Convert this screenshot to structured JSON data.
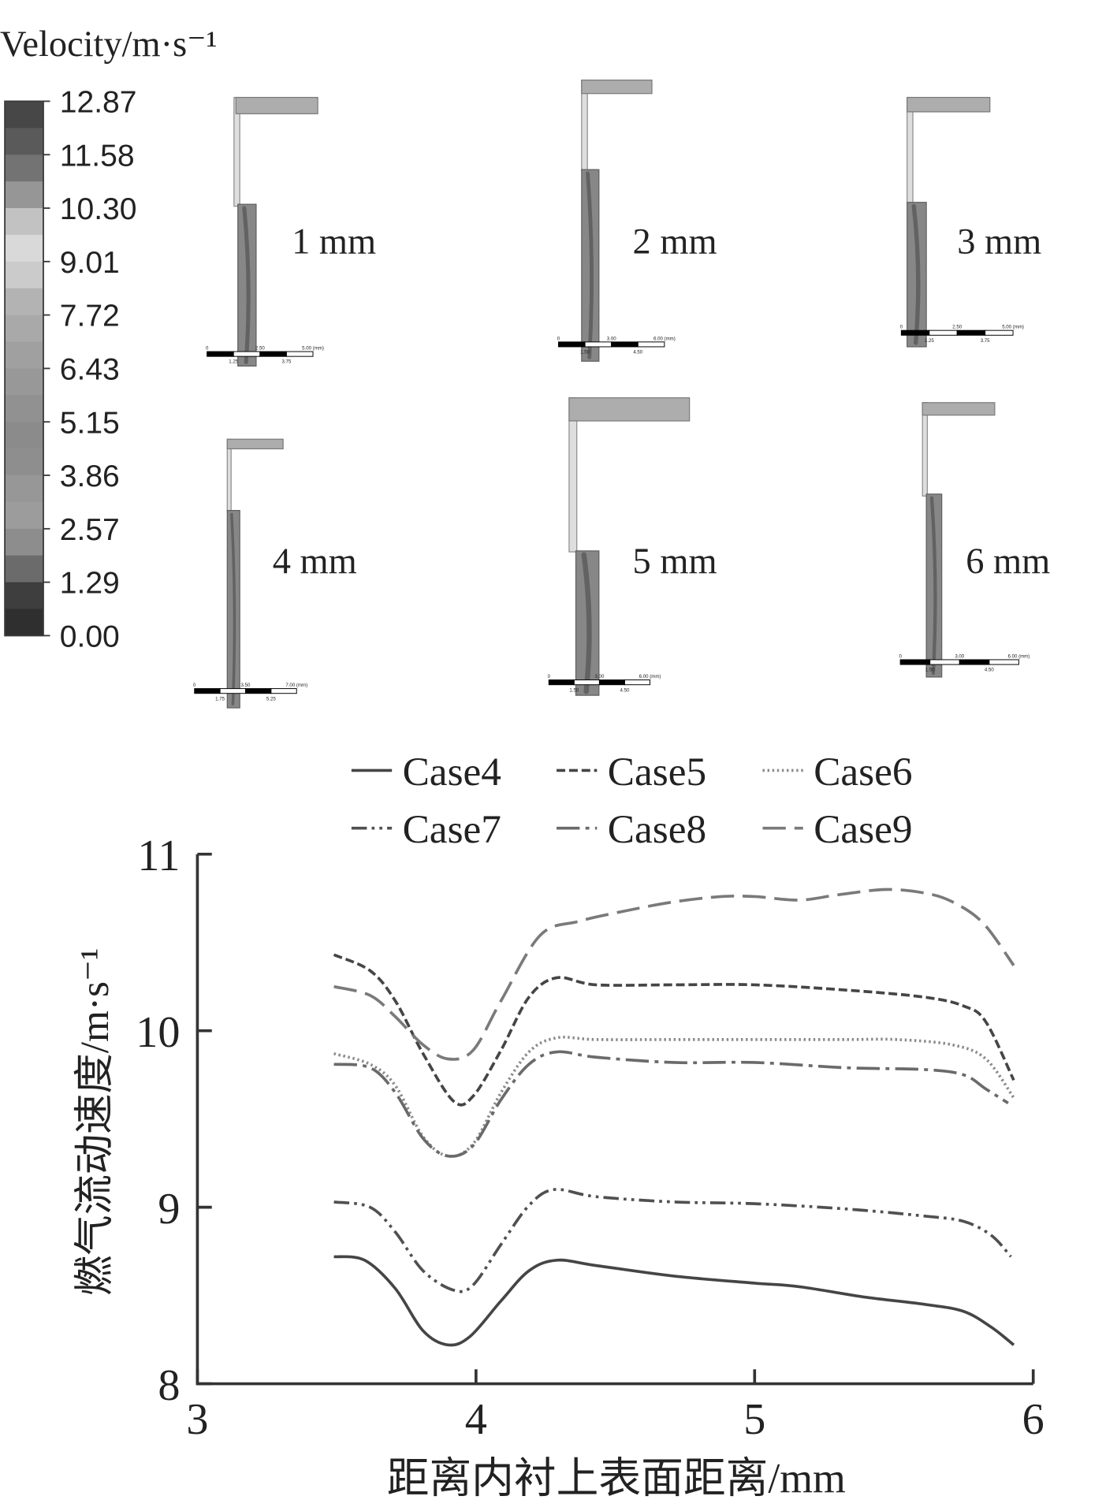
{
  "colorbar": {
    "title": "Velocity/m·s⁻¹",
    "labels": [
      "12.87",
      "11.58",
      "10.30",
      "9.01",
      "7.72",
      "6.43",
      "5.15",
      "3.86",
      "2.57",
      "1.29",
      "0.00"
    ],
    "bands": [
      "#474747",
      "#5a5a5a",
      "#737373",
      "#969696",
      "#c2c2c2",
      "#d9d9d9",
      "#cbcbcb",
      "#b3b3b3",
      "#a9a9a9",
      "#a0a0a0",
      "#989898",
      "#919191",
      "#8b8b8b",
      "#8e8e8e",
      "#979797",
      "#9c9c9c",
      "#8d8d8d",
      "#6b6b6b",
      "#3e3e3e",
      "#2f2f2f"
    ]
  },
  "panels": [
    {
      "label": "1 mm",
      "scale_labels": [
        "0",
        "2.50",
        "5.00 (mm)",
        "1.25",
        "3.75"
      ]
    },
    {
      "label": "2 mm",
      "scale_labels": [
        "0",
        "3.00",
        "6.00 (mm)",
        "1.50",
        "4.50"
      ]
    },
    {
      "label": "3 mm",
      "scale_labels": [
        "0",
        "2.50",
        "5.00 (mm)",
        "1.25",
        "3.75"
      ]
    },
    {
      "label": "4 mm",
      "scale_labels": [
        "0",
        "3.50",
        "7.00 (mm)",
        "1.75",
        "5.25"
      ]
    },
    {
      "label": "5 mm",
      "scale_labels": [
        "0",
        "3.00",
        "6.00 (mm)",
        "1.50",
        "4.50"
      ]
    },
    {
      "label": "6 mm",
      "scale_labels": [
        "0",
        "3.00",
        "6.00 (mm)",
        "1.50",
        "4.50"
      ]
    }
  ],
  "chart_data": {
    "type": "line",
    "xlabel": "距离内衬上表面距离/mm",
    "ylabel": "燃气流动速度/m·s⁻¹",
    "xlim": [
      3,
      6
    ],
    "ylim": [
      8,
      11
    ],
    "x_ticks": [
      "3",
      "4",
      "5",
      "6"
    ],
    "y_ticks": [
      "8",
      "9",
      "10",
      "11"
    ],
    "grid": false,
    "legend_position": "top",
    "axis_color": "#333333",
    "series": [
      {
        "name": "Case4",
        "style": "solid",
        "color": "#454545",
        "x": [
          3.49,
          3.6,
          3.71,
          3.81,
          3.9,
          3.98,
          4.09,
          4.19,
          4.29,
          4.43,
          4.71,
          5.0,
          5.16,
          5.4,
          5.61,
          5.75,
          5.85,
          5.93
        ],
        "y": [
          8.72,
          8.7,
          8.54,
          8.3,
          8.22,
          8.27,
          8.47,
          8.64,
          8.7,
          8.67,
          8.61,
          8.57,
          8.55,
          8.49,
          8.45,
          8.41,
          8.32,
          8.22
        ]
      },
      {
        "name": "Case5",
        "style": "dashed",
        "color": "#454545",
        "x": [
          3.49,
          3.62,
          3.71,
          3.81,
          3.92,
          3.99,
          4.09,
          4.19,
          4.29,
          4.43,
          4.71,
          5.0,
          5.33,
          5.61,
          5.75,
          5.83,
          5.93
        ],
        "y": [
          10.43,
          10.34,
          10.17,
          9.87,
          9.6,
          9.63,
          9.89,
          10.19,
          10.3,
          10.26,
          10.26,
          10.26,
          10.23,
          10.19,
          10.14,
          10.05,
          9.72
        ]
      },
      {
        "name": "Case6",
        "style": "dotted",
        "color": "#8a8a8a",
        "x": [
          3.49,
          3.62,
          3.71,
          3.81,
          3.9,
          3.99,
          4.09,
          4.19,
          4.29,
          4.43,
          4.71,
          5.0,
          5.33,
          5.51,
          5.71,
          5.83,
          5.93
        ],
        "y": [
          9.87,
          9.81,
          9.69,
          9.4,
          9.29,
          9.36,
          9.65,
          9.88,
          9.96,
          9.95,
          9.95,
          9.95,
          9.95,
          9.95,
          9.92,
          9.84,
          9.62
        ]
      },
      {
        "name": "Case7",
        "style": "dash-dot-dot",
        "color": "#505050",
        "x": [
          3.49,
          3.62,
          3.71,
          3.81,
          3.92,
          3.99,
          4.09,
          4.19,
          4.28,
          4.43,
          4.71,
          5.0,
          5.33,
          5.61,
          5.75,
          5.85,
          5.92
        ],
        "y": [
          9.03,
          9.0,
          8.86,
          8.64,
          8.53,
          8.56,
          8.79,
          9.01,
          9.1,
          9.06,
          9.03,
          9.02,
          8.99,
          8.95,
          8.92,
          8.84,
          8.72
        ]
      },
      {
        "name": "Case8",
        "style": "long-dash-dot",
        "color": "#6a6a6a",
        "x": [
          3.49,
          3.62,
          3.71,
          3.81,
          3.9,
          3.99,
          4.09,
          4.19,
          4.29,
          4.43,
          4.71,
          5.0,
          5.33,
          5.61,
          5.75,
          5.83,
          5.91
        ],
        "y": [
          9.81,
          9.79,
          9.65,
          9.39,
          9.29,
          9.35,
          9.61,
          9.81,
          9.88,
          9.85,
          9.82,
          9.82,
          9.79,
          9.78,
          9.75,
          9.67,
          9.59
        ]
      },
      {
        "name": "Case9",
        "style": "long-dash",
        "color": "#7a7a7a",
        "x": [
          3.49,
          3.62,
          3.71,
          3.81,
          3.9,
          3.99,
          4.09,
          4.23,
          4.37,
          4.54,
          4.71,
          4.88,
          5.0,
          5.16,
          5.3,
          5.47,
          5.61,
          5.71,
          5.82,
          5.93
        ],
        "y": [
          10.25,
          10.2,
          10.08,
          9.92,
          9.84,
          9.89,
          10.17,
          10.54,
          10.62,
          10.68,
          10.73,
          10.76,
          10.76,
          10.74,
          10.77,
          10.8,
          10.78,
          10.73,
          10.61,
          10.37
        ]
      }
    ]
  }
}
